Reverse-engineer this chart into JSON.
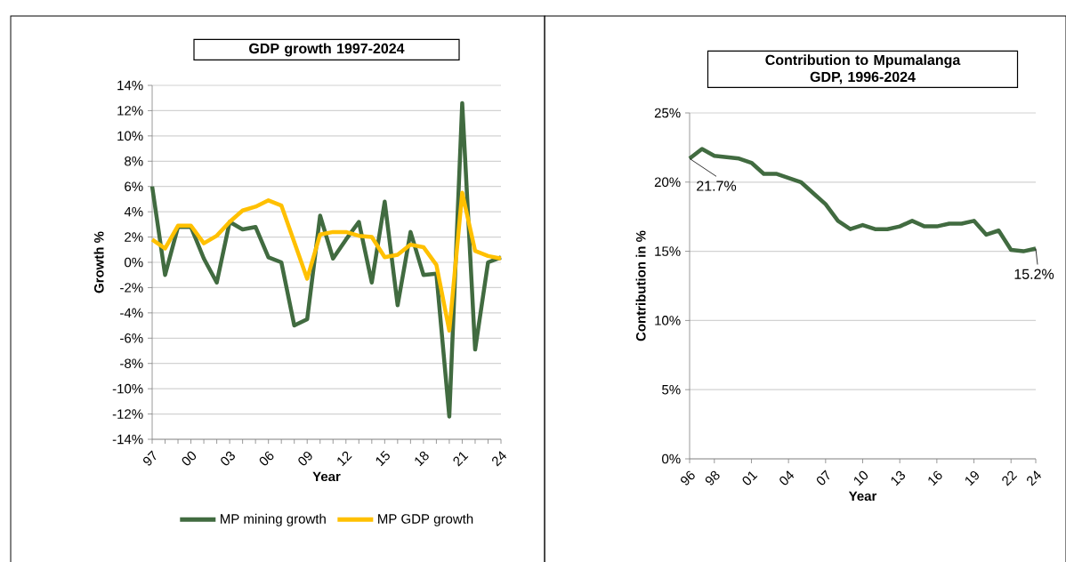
{
  "chart_data": [
    {
      "type": "line",
      "title": "GDP growth 1997-2024",
      "xlabel": "Year",
      "ylabel": "Growth %",
      "categories": [
        "97",
        null,
        null,
        "00",
        null,
        null,
        "03",
        null,
        null,
        "06",
        null,
        null,
        "09",
        null,
        null,
        "12",
        null,
        null,
        "15",
        null,
        null,
        "18",
        null,
        null,
        "21",
        null,
        null,
        "24"
      ],
      "series": [
        {
          "name": "MP mining growth",
          "color": "#416b40",
          "values": [
            6.0,
            -1.0,
            2.8,
            2.8,
            0.3,
            -1.6,
            3.2,
            2.6,
            2.8,
            0.4,
            0.0,
            -5.0,
            -4.5,
            3.7,
            0.3,
            1.8,
            3.2,
            -1.6,
            4.8,
            -3.4,
            2.4,
            -1.0,
            -0.9,
            -12.2,
            12.6,
            -6.9,
            0.0,
            0.4
          ]
        },
        {
          "name": "MP GDP growth",
          "color": "#ffc000",
          "values": [
            1.8,
            1.1,
            2.9,
            2.9,
            1.5,
            2.1,
            3.2,
            4.1,
            4.4,
            4.9,
            4.5,
            1.6,
            -1.3,
            2.2,
            2.4,
            2.4,
            2.1,
            2.0,
            0.4,
            0.6,
            1.4,
            1.2,
            -0.2,
            -5.4,
            5.5,
            0.9,
            0.5,
            0.3
          ]
        }
      ],
      "ylim": [
        -14,
        14
      ],
      "yticks": [
        {
          "value": -14,
          "label": "-14%"
        },
        {
          "value": -12,
          "label": "-12%"
        },
        {
          "value": -10,
          "label": "-10%"
        },
        {
          "value": -8,
          "label": "-8%"
        },
        {
          "value": -6,
          "label": "-6%"
        },
        {
          "value": -4,
          "label": "-4%"
        },
        {
          "value": -2,
          "label": "-2%"
        },
        {
          "value": 0,
          "label": "0%"
        },
        {
          "value": 2,
          "label": "2%"
        },
        {
          "value": 4,
          "label": "4%"
        },
        {
          "value": 6,
          "label": "6%"
        },
        {
          "value": 8,
          "label": "8%"
        },
        {
          "value": 10,
          "label": "10%"
        },
        {
          "value": 12,
          "label": "12%"
        },
        {
          "value": 14,
          "label": "14%"
        }
      ],
      "grid": "y",
      "legend": "bottom"
    },
    {
      "type": "line",
      "title": "Contribution to Mpumalanga GDP, 1996-2024",
      "xlabel": "Year",
      "ylabel": "Contribution in %",
      "x": [
        1996,
        1997,
        1998,
        1999,
        2000,
        2001,
        2002,
        2003,
        2004,
        2005,
        2006,
        2007,
        2008,
        2009,
        2010,
        2011,
        2012,
        2013,
        2014,
        2015,
        2016,
        2017,
        2018,
        2019,
        2020,
        2021,
        2022,
        2023,
        2024
      ],
      "series": [
        {
          "color": "#416b40",
          "values": [
            21.7,
            22.4,
            21.9,
            21.8,
            21.7,
            21.4,
            20.6,
            20.6,
            20.3,
            20.0,
            19.2,
            18.4,
            17.2,
            16.6,
            16.9,
            16.6,
            16.6,
            16.8,
            17.2,
            16.8,
            16.8,
            17.0,
            17.0,
            17.2,
            16.2,
            16.5,
            15.1,
            15.0,
            15.2
          ]
        }
      ],
      "xlim": [
        1996,
        2024
      ],
      "xticks": [
        {
          "value": 1996,
          "label": "96"
        },
        {
          "value": 1998,
          "label": "98"
        },
        {
          "value": 2001,
          "label": "01"
        },
        {
          "value": 2004,
          "label": "04"
        },
        {
          "value": 2007,
          "label": "07"
        },
        {
          "value": 2010,
          "label": "10"
        },
        {
          "value": 2013,
          "label": "13"
        },
        {
          "value": 2016,
          "label": "16"
        },
        {
          "value": 2019,
          "label": "19"
        },
        {
          "value": 2022,
          "label": "22"
        },
        {
          "value": 2024,
          "label": "24"
        }
      ],
      "ylim": [
        0,
        25
      ],
      "yticks": [
        {
          "value": 0,
          "label": "0%"
        },
        {
          "value": 5,
          "label": "5%"
        },
        {
          "value": 10,
          "label": "10%"
        },
        {
          "value": 15,
          "label": "15%"
        },
        {
          "value": 20,
          "label": "20%"
        },
        {
          "value": 25,
          "label": "25%"
        }
      ],
      "grid": "y",
      "annotations": [
        {
          "text": "21.7%",
          "x": 1996,
          "y": 21.7
        },
        {
          "text": "15.2%",
          "x": 2024,
          "y": 15.2
        }
      ]
    }
  ]
}
